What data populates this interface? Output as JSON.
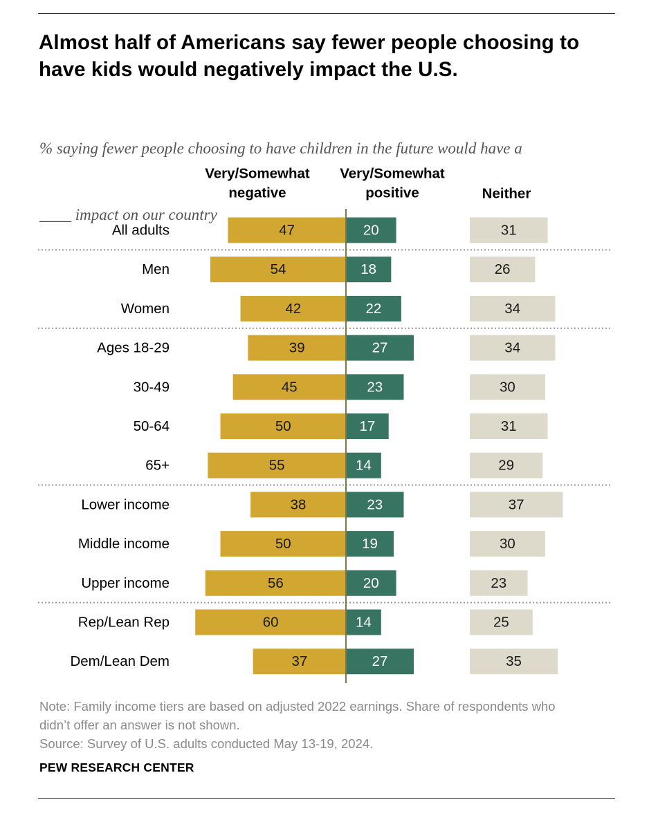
{
  "title_lines": [
    "Almost half of Americans say fewer people choosing to",
    "have kids would negatively impact the U.S."
  ],
  "subtitle_lines": [
    "% saying fewer people choosing to have children in the future would have a",
    "____ impact on our country"
  ],
  "note_lines": [
    "Note: Family income tiers are based on adjusted 2022 earnings. Share of respondents who",
    "didn’t offer an answer is not shown.",
    "Source: Survey of U.S. adults conducted May 13-19, 2024."
  ],
  "brand": "PEW RESEARCH CENTER",
  "colors": {
    "negative": "#D1A631",
    "positive": "#387462",
    "neither": "#DDD9CB",
    "divider_line": "#7B7A44",
    "dotted": "#999999"
  },
  "chart_data": {
    "type": "bar",
    "orientation": "horizontal-diverging",
    "columns": [
      {
        "key": "negative",
        "label_lines": [
          "Very/Somewhat",
          "negative"
        ]
      },
      {
        "key": "positive",
        "label_lines": [
          "Very/Somewhat",
          "positive"
        ]
      },
      {
        "key": "neither",
        "label_lines": [
          "Neither"
        ]
      }
    ],
    "categories": [
      "All adults",
      "Men",
      "Women",
      "Ages 18-29",
      "30-49",
      "50-64",
      "65+",
      "Lower income",
      "Middle income",
      "Upper income",
      "Rep/Lean Rep",
      "Dem/Lean Dem"
    ],
    "groups": [
      [
        "All adults"
      ],
      [
        "Men",
        "Women"
      ],
      [
        "Ages 18-29",
        "30-49",
        "50-64",
        "65+"
      ],
      [
        "Lower income",
        "Middle income",
        "Upper income"
      ],
      [
        "Rep/Lean Rep",
        "Dem/Lean Dem"
      ]
    ],
    "series": [
      {
        "name": "Very/Somewhat negative",
        "values": [
          47,
          54,
          42,
          39,
          45,
          50,
          55,
          38,
          50,
          56,
          60,
          37
        ]
      },
      {
        "name": "Very/Somewhat positive",
        "values": [
          20,
          18,
          22,
          27,
          23,
          17,
          14,
          23,
          19,
          20,
          14,
          27
        ]
      },
      {
        "name": "Neither",
        "values": [
          31,
          26,
          34,
          34,
          30,
          31,
          29,
          37,
          30,
          23,
          25,
          35
        ]
      }
    ],
    "data_labels": true,
    "grid": false
  }
}
